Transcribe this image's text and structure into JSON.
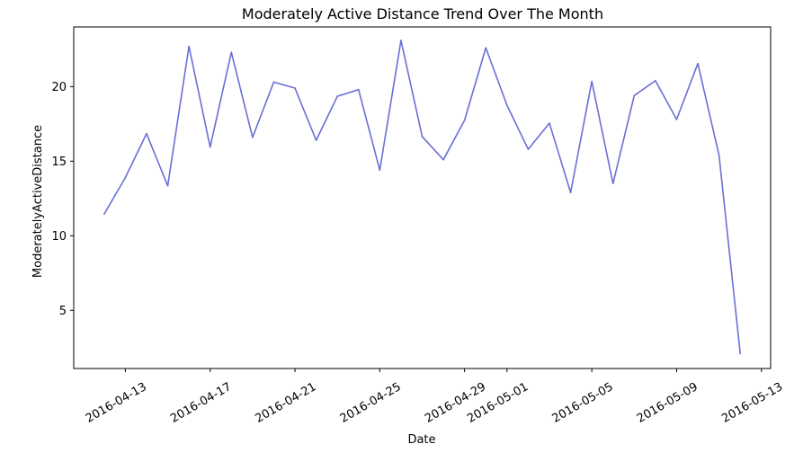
{
  "chart_data": {
    "type": "line",
    "title": "Moderately Active Distance Trend Over The Month",
    "xlabel": "Date",
    "ylabel": "ModeratelyActiveDistance",
    "x_ticks": [
      "2016-04-13",
      "2016-04-17",
      "2016-04-21",
      "2016-04-25",
      "2016-04-29",
      "2016-05-01",
      "2016-05-05",
      "2016-05-09",
      "2016-05-13"
    ],
    "y_ticks": [
      5,
      10,
      15,
      20
    ],
    "ylim": [
      1.1,
      24.0
    ],
    "xlim": [
      "2016-04-10T13:36",
      "2016-05-13T10:24"
    ],
    "line_color": "#6a6fd6",
    "grid": false,
    "legend": "none",
    "series": [
      {
        "x": [
          "2016-04-12",
          "2016-04-13",
          "2016-04-14",
          "2016-04-15",
          "2016-04-16",
          "2016-04-17",
          "2016-04-18",
          "2016-04-19",
          "2016-04-20",
          "2016-04-21",
          "2016-04-22",
          "2016-04-23",
          "2016-04-24",
          "2016-04-25",
          "2016-04-26",
          "2016-04-27",
          "2016-04-28",
          "2016-04-29",
          "2016-04-30",
          "2016-05-01",
          "2016-05-02",
          "2016-05-03",
          "2016-05-04",
          "2016-05-05",
          "2016-05-06",
          "2016-05-07",
          "2016-05-08",
          "2016-05-09",
          "2016-05-10",
          "2016-05-11",
          "2016-05-12"
        ],
        "values": [
          11.45,
          13.9,
          16.85,
          13.35,
          22.7,
          15.95,
          22.3,
          16.6,
          20.3,
          19.9,
          16.4,
          19.35,
          19.8,
          14.4,
          23.1,
          16.65,
          15.1,
          17.75,
          22.6,
          18.75,
          15.8,
          17.55,
          12.9,
          20.35,
          13.5,
          19.4,
          20.4,
          17.8,
          21.55,
          15.4,
          2.1
        ]
      }
    ]
  }
}
